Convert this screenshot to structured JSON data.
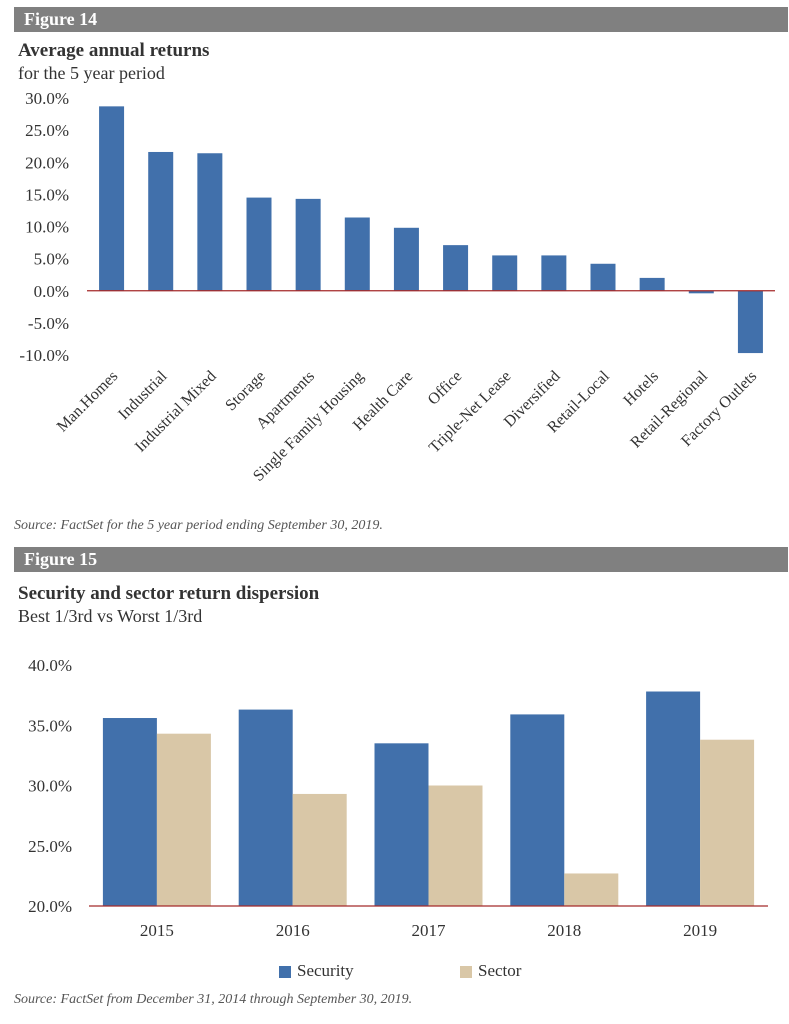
{
  "figure14": {
    "label": "Figure 14",
    "title": "Average annual returns",
    "subtitle": "for the 5 year period",
    "source": "Source: FactSet for the 5 year period ending September 30, 2019."
  },
  "figure15": {
    "label": "Figure 15",
    "title": "Security and sector return dispersion",
    "subtitle": "Best 1/3rd vs Worst 1/3rd",
    "source": "Source: FactSet from December 31, 2014 through September 30, 2019."
  },
  "colors": {
    "security": "#4170ab",
    "sector": "#d9c7a7",
    "zero_line": "#a52a2a",
    "header": "#808080"
  },
  "chart_data": [
    {
      "type": "bar",
      "title": "Average annual returns",
      "subtitle": "for the 5 year period",
      "categories": [
        "Man.Homes",
        "Industrial",
        "Industrial Mixed",
        "Storage",
        "Apartments",
        "Single Family Housing",
        "Health Care",
        "Office",
        "Triple-Net Lease",
        "Diversified",
        "Retail-Local",
        "Hotels",
        "Retail-Regional",
        "Factory Outlets"
      ],
      "values": [
        28.7,
        21.6,
        21.4,
        14.5,
        14.3,
        11.4,
        9.8,
        7.1,
        5.5,
        5.5,
        4.2,
        2.0,
        -0.4,
        -9.7
      ],
      "ylim": [
        -10,
        30
      ],
      "yticks": [
        "30.0%",
        "25.0%",
        "20.0%",
        "15.0%",
        "10.0%",
        "5.0%",
        "0.0%",
        "-5.0%",
        "-10.0%"
      ],
      "grid": false
    },
    {
      "type": "bar",
      "title": "Security and sector return dispersion",
      "subtitle": "Best 1/3rd vs Worst 1/3rd",
      "categories": [
        "2015",
        "2016",
        "2017",
        "2018",
        "2019"
      ],
      "series": [
        {
          "name": "Security",
          "values": [
            35.6,
            36.3,
            33.5,
            35.9,
            37.8
          ]
        },
        {
          "name": "Sector",
          "values": [
            34.3,
            29.3,
            30.0,
            22.7,
            33.8
          ]
        }
      ],
      "ylim": [
        20,
        40
      ],
      "yticks": [
        "40.0%",
        "35.0%",
        "30.0%",
        "25.0%",
        "20.0%"
      ],
      "legend": "bottom",
      "grid": false
    }
  ]
}
